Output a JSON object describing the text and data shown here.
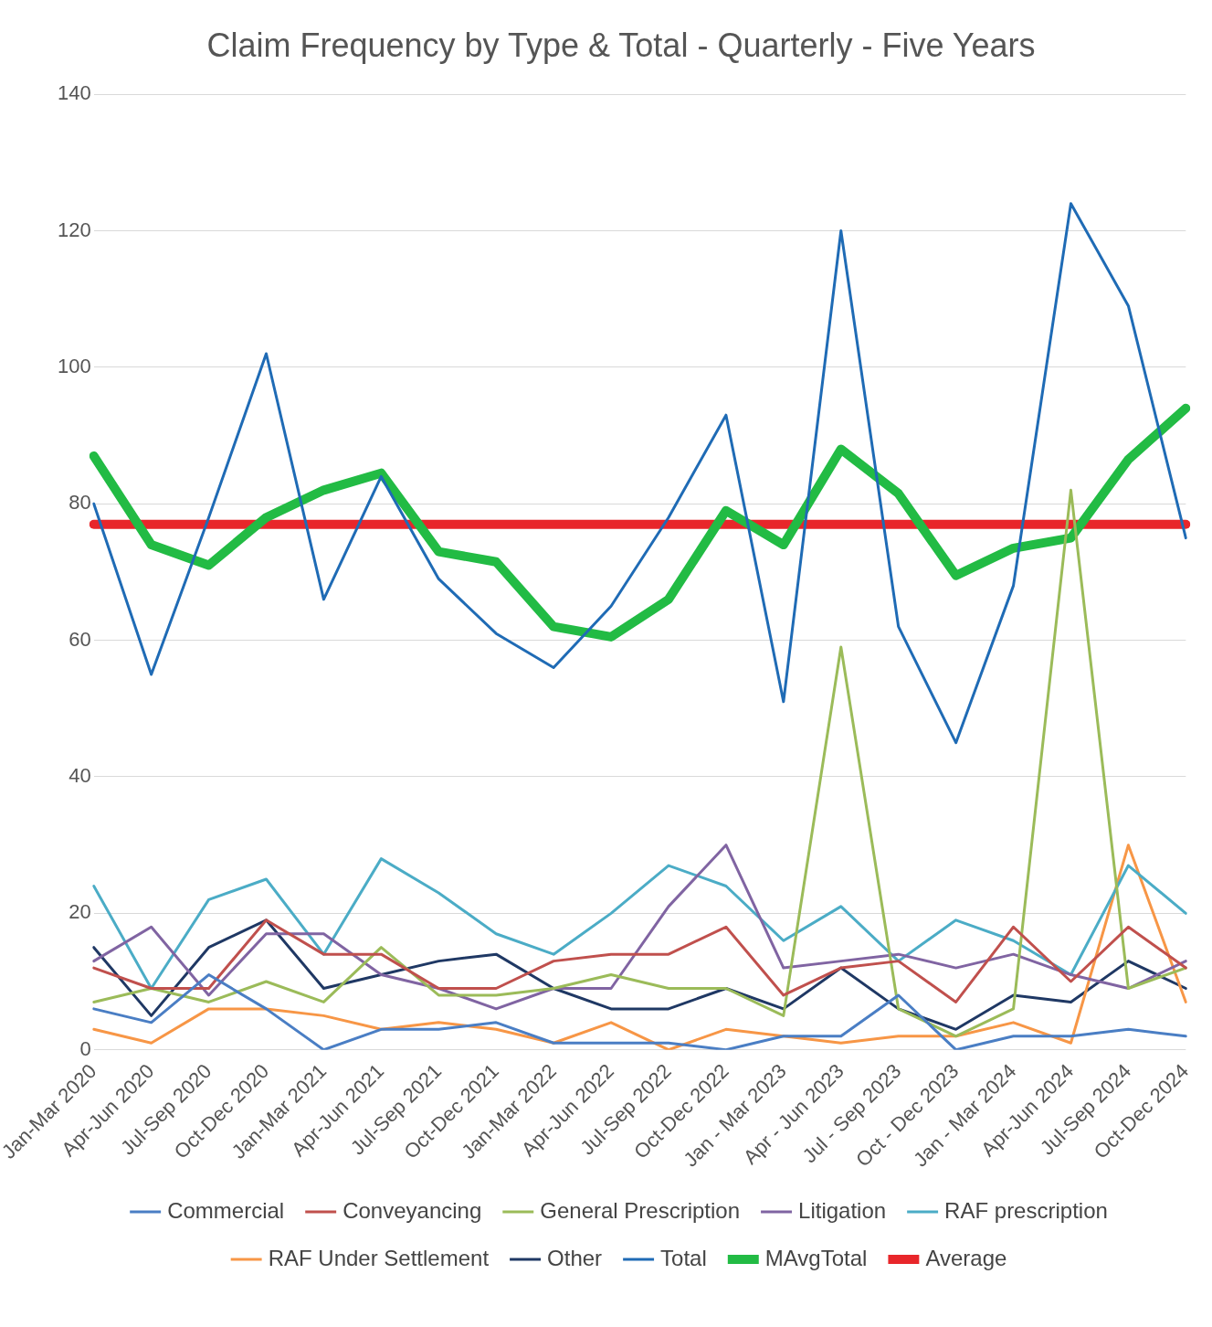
{
  "chart_data": {
    "type": "line",
    "title": "Claim Frequency by Type & Total - Quarterly - Five Years",
    "categories": [
      "Jan-Mar 2020",
      "Apr-Jun 2020",
      "Jul-Sep 2020",
      "Oct-Dec 2020",
      "Jan-Mar 2021",
      "Apr-Jun 2021",
      "Jul-Sep 2021",
      "Oct-Dec 2021",
      "Jan-Mar 2022",
      "Apr-Jun 2022",
      "Jul-Sep 2022",
      "Oct-Dec 2022",
      "Jan - Mar 2023",
      "Apr - Jun 2023",
      "Jul - Sep 2023",
      "Oct - Dec 2023",
      "Jan - Mar 2024",
      "Apr-Jun 2024",
      "Jul-Sep 2024",
      "Oct-Dec 2024"
    ],
    "series": [
      {
        "name": "Commercial",
        "color": "#4a7ec4",
        "values": [
          6,
          4,
          11,
          6,
          0,
          3,
          3,
          4,
          1,
          1,
          1,
          0,
          2,
          2,
          8,
          0,
          2,
          2,
          3,
          2
        ]
      },
      {
        "name": "Conveyancing",
        "color": "#c0504d",
        "values": [
          12,
          9,
          9,
          19,
          14,
          14,
          9,
          9,
          13,
          14,
          14,
          18,
          8,
          12,
          13,
          7,
          18,
          10,
          18,
          12
        ]
      },
      {
        "name": "General Prescription",
        "color": "#9bbb59",
        "values": [
          7,
          9,
          7,
          10,
          7,
          15,
          8,
          8,
          9,
          11,
          9,
          9,
          5,
          59,
          6,
          2,
          6,
          82,
          9,
          12
        ]
      },
      {
        "name": "Litigation",
        "color": "#8064a2",
        "values": [
          13,
          18,
          8,
          17,
          17,
          11,
          9,
          6,
          9,
          9,
          21,
          30,
          12,
          13,
          14,
          12,
          14,
          11,
          9,
          13
        ]
      },
      {
        "name": "RAF prescription",
        "color": "#4bacc6",
        "values": [
          24,
          9,
          22,
          25,
          14,
          28,
          23,
          17,
          14,
          20,
          27,
          24,
          16,
          21,
          13,
          19,
          16,
          11,
          27,
          20
        ]
      },
      {
        "name": "RAF Under Settlement",
        "color": "#f79646",
        "values": [
          3,
          1,
          6,
          6,
          5,
          3,
          4,
          3,
          1,
          4,
          0,
          3,
          2,
          1,
          2,
          2,
          4,
          1,
          30,
          7
        ]
      },
      {
        "name": "Other",
        "color": "#1f3864",
        "values": [
          15,
          5,
          15,
          19,
          9,
          11,
          13,
          14,
          9,
          6,
          6,
          9,
          6,
          12,
          6,
          3,
          8,
          7,
          13,
          9
        ]
      },
      {
        "name": "Total",
        "color": "#1f6bb5",
        "values": [
          80,
          55,
          78,
          102,
          66,
          84,
          69,
          61,
          56,
          65,
          78,
          93,
          51,
          120,
          62,
          45,
          68,
          124,
          109,
          75
        ]
      },
      {
        "name": "MAvgTotal",
        "color": "#22bb44",
        "values": [
          87,
          74,
          71,
          78,
          82,
          84.5,
          73,
          71.5,
          62,
          60.5,
          66,
          79,
          74,
          88,
          81.5,
          69.5,
          73.5,
          75,
          86.5,
          94
        ]
      },
      {
        "name": "Average",
        "color": "#e8262a",
        "values": [
          77,
          77,
          77,
          77,
          77,
          77,
          77,
          77,
          77,
          77,
          77,
          77,
          77,
          77,
          77,
          77,
          77,
          77,
          77,
          77
        ]
      }
    ],
    "ylim": [
      0,
      140
    ],
    "yticks": [
      0,
      20,
      40,
      60,
      80,
      100,
      120,
      140
    ],
    "grid": "y",
    "legend": "bottom",
    "marker": "none"
  }
}
